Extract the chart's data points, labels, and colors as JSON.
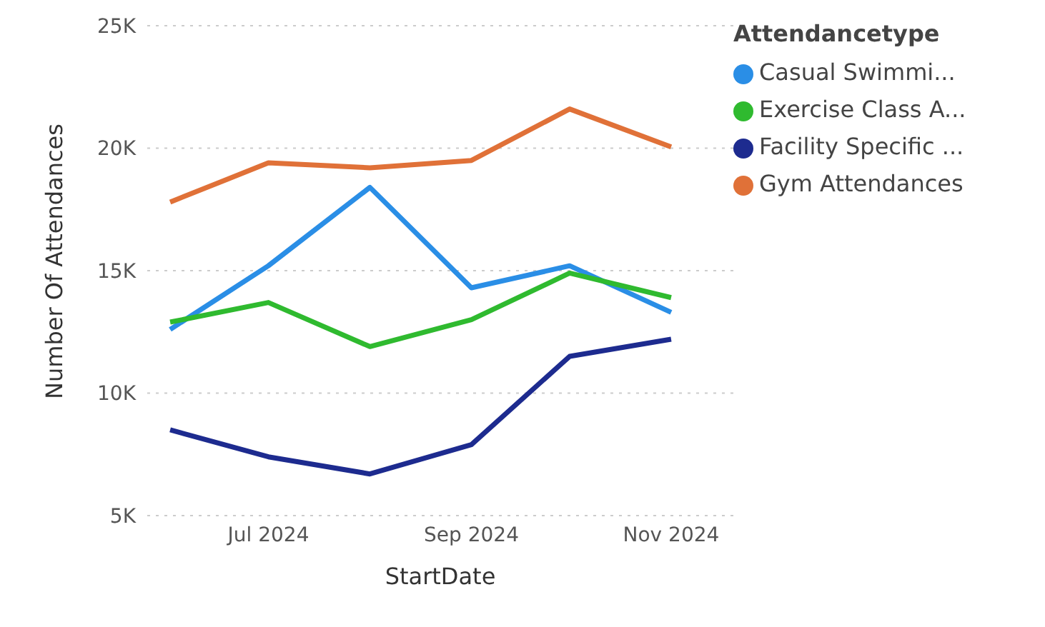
{
  "chart_data": {
    "type": "line",
    "xlabel": "StartDate",
    "ylabel": "Number Of Attendances",
    "legend_title": "Attendancetype",
    "x": [
      "2024-06",
      "2024-07",
      "2024-08",
      "2024-09",
      "2024-10",
      "2024-11"
    ],
    "series": [
      {
        "name": "Casual Swimmi...",
        "color": "#2a8ee6",
        "values": [
          12600,
          15200,
          18400,
          14300,
          15200,
          13300
        ]
      },
      {
        "name": "Exercise Class A...",
        "color": "#2fba2f",
        "values": [
          12900,
          13700,
          11900,
          13000,
          14900,
          13900
        ]
      },
      {
        "name": "Facility Specific ...",
        "color": "#1d2b8f",
        "values": [
          8500,
          7400,
          6700,
          7900,
          11500,
          12200
        ]
      },
      {
        "name": "Gym Attendances",
        "color": "#e07138",
        "values": [
          17800,
          19400,
          19200,
          19500,
          21600,
          20050
        ]
      }
    ],
    "xlim": [
      "2024-05-25",
      "2024-11-20"
    ],
    "xticks": [
      {
        "value": "2024-07",
        "label": "Jul 2024"
      },
      {
        "value": "2024-09",
        "label": "Sep 2024"
      },
      {
        "value": "2024-11",
        "label": "Nov 2024"
      }
    ],
    "ylim": [
      5000,
      25000
    ],
    "yticks": [
      {
        "value": 5000,
        "label": "5K"
      },
      {
        "value": 10000,
        "label": "10K"
      },
      {
        "value": 15000,
        "label": "15K"
      },
      {
        "value": 20000,
        "label": "20K"
      },
      {
        "value": 25000,
        "label": "25K"
      }
    ],
    "grid": "y",
    "legend": "top right",
    "marker": "none",
    "line_style": "solid"
  }
}
